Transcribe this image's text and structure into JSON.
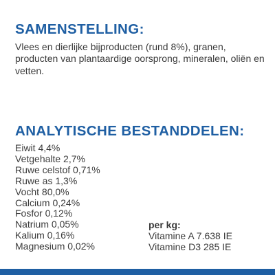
{
  "theme": {
    "accent": "#1f5fa3",
    "text": "#3a3a3a",
    "background": "#ffffff"
  },
  "composition": {
    "heading": "SAMENSTELLING:",
    "text": "Vlees en dierlijke bijproducten (rund 8%), granen, producten van plantaardige oorsprong, mineralen, oliën en vetten."
  },
  "analytical": {
    "heading": "ANALYTISCHE BESTANDDELEN:",
    "items": [
      "Eiwit 4,4%",
      "Vetgehalte 2,7%",
      "Ruwe celstof 0,71%",
      "Ruwe as 1,3%",
      "Vocht 80,0%",
      "Calcium 0,24%",
      "Fosfor 0,12%",
      "Natrium 0,05%",
      "Kalium 0,16%",
      "Magnesium 0,02%"
    ],
    "per_kg": {
      "label": "per kg:",
      "items": [
        "Vitamine A 7.638 IE",
        "Vitamine D3 285 IE"
      ]
    }
  }
}
